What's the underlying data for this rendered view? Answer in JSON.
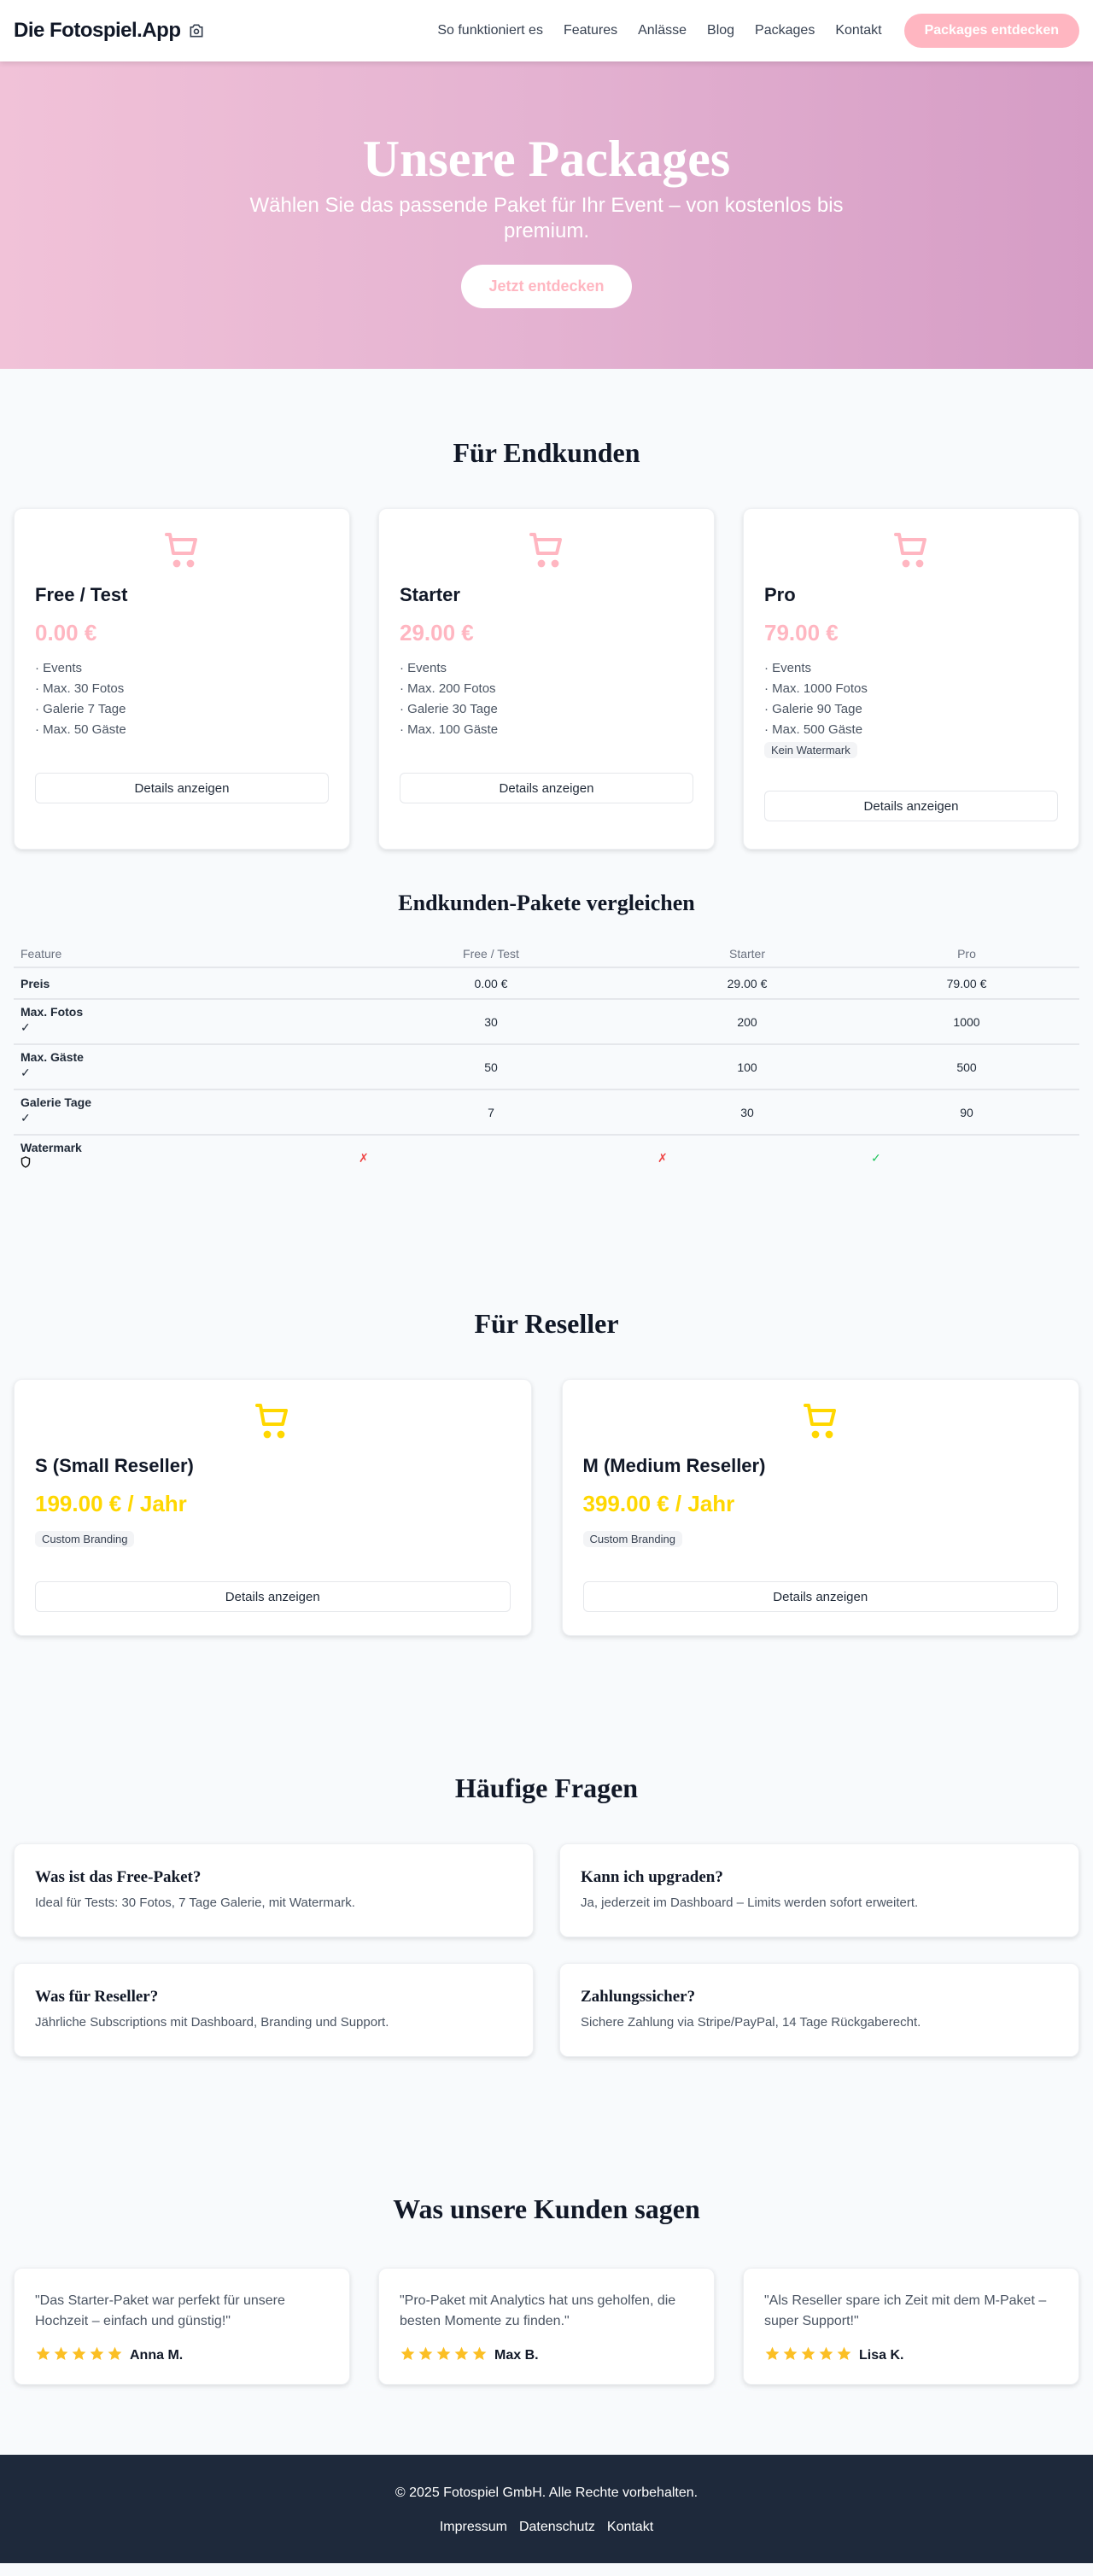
{
  "header": {
    "logo": "Die Fotospiel.App",
    "nav": [
      "So funktioniert es",
      "Features",
      "Anlässe",
      "Blog",
      "Packages",
      "Kontakt"
    ],
    "cta": "Packages entdecken"
  },
  "hero": {
    "title": "Unsere Packages",
    "subtitle": "Wählen Sie das passende Paket für Ihr Event – von kostenlos bis premium.",
    "button": "Jetzt entdecken"
  },
  "colors": {
    "pink": "#FFB6C1",
    "yellow": "#FFD700",
    "footer": "#1E293B"
  },
  "endkunden": {
    "title": "Für Endkunden",
    "packages": [
      {
        "name": "Free / Test",
        "price": "0.00 €",
        "features": [
          "· Events",
          "· Max. 30 Fotos",
          "· Galerie 7 Tage",
          "· Max. 50 Gäste"
        ],
        "badge": null,
        "button": "Details anzeigen"
      },
      {
        "name": "Starter",
        "price": "29.00 €",
        "features": [
          "· Events",
          "· Max. 200 Fotos",
          "· Galerie 30 Tage",
          "· Max. 100 Gäste"
        ],
        "badge": null,
        "button": "Details anzeigen"
      },
      {
        "name": "Pro",
        "price": "79.00 €",
        "features": [
          "· Events",
          "· Max. 1000 Fotos",
          "· Galerie 90 Tage",
          "· Max. 500 Gäste"
        ],
        "badge": "Kein Watermark",
        "button": "Details anzeigen"
      }
    ]
  },
  "compare": {
    "title": "Endkunden-Pakete vergleichen",
    "headers": [
      "Feature",
      "Free / Test",
      "Starter",
      "Pro"
    ],
    "rows": [
      {
        "feature": "Preis",
        "icon": "",
        "values": [
          "0.00 €",
          "29.00 €",
          "79.00 €"
        ]
      },
      {
        "feature": "Max. Fotos",
        "icon": "✓",
        "values": [
          "30",
          "200",
          "1000"
        ]
      },
      {
        "feature": "Max. Gäste",
        "icon": "✓",
        "values": [
          "50",
          "100",
          "500"
        ]
      },
      {
        "feature": "Galerie Tage",
        "icon": "✓",
        "values": [
          "7",
          "30",
          "90"
        ]
      }
    ],
    "watermark": {
      "feature": "Watermark",
      "marks": [
        "✗",
        "✗",
        "✓"
      ]
    }
  },
  "reseller": {
    "title": "Für Reseller",
    "packages": [
      {
        "name": "S (Small Reseller)",
        "price": "199.00 € / Jahr",
        "badge": "Custom Branding",
        "button": "Details anzeigen"
      },
      {
        "name": "M (Medium Reseller)",
        "price": "399.00 € / Jahr",
        "badge": "Custom Branding",
        "button": "Details anzeigen"
      }
    ]
  },
  "faq": {
    "title": "Häufige Fragen",
    "items": [
      {
        "q": "Was ist das Free-Paket?",
        "a": "Ideal für Tests: 30 Fotos, 7 Tage Galerie, mit Watermark."
      },
      {
        "q": "Kann ich upgraden?",
        "a": "Ja, jederzeit im Dashboard – Limits werden sofort erweitert."
      },
      {
        "q": "Was für Reseller?",
        "a": "Jährliche Subscriptions mit Dashboard, Branding und Support."
      },
      {
        "q": "Zahlungssicher?",
        "a": "Sichere Zahlung via Stripe/PayPal, 14 Tage Rückgaberecht."
      }
    ]
  },
  "testimonials": {
    "title": "Was unsere Kunden sagen",
    "items": [
      {
        "text": "\"Das Starter-Paket war perfekt für unsere Hochzeit – einfach und günstig!\"",
        "name": "Anna M.",
        "rating": 5
      },
      {
        "text": "\"Pro-Paket mit Analytics hat uns geholfen, die besten Momente zu finden.\"",
        "name": "Max B.",
        "rating": 5
      },
      {
        "text": "\"Als Reseller spare ich Zeit mit dem M-Paket – super Support!\"",
        "name": "Lisa K.",
        "rating": 5
      }
    ]
  },
  "footer": {
    "copyright": "© 2025 Fotospiel GmbH. Alle Rechte vorbehalten.",
    "links": [
      "Impressum",
      "Datenschutz",
      "Kontakt"
    ]
  }
}
